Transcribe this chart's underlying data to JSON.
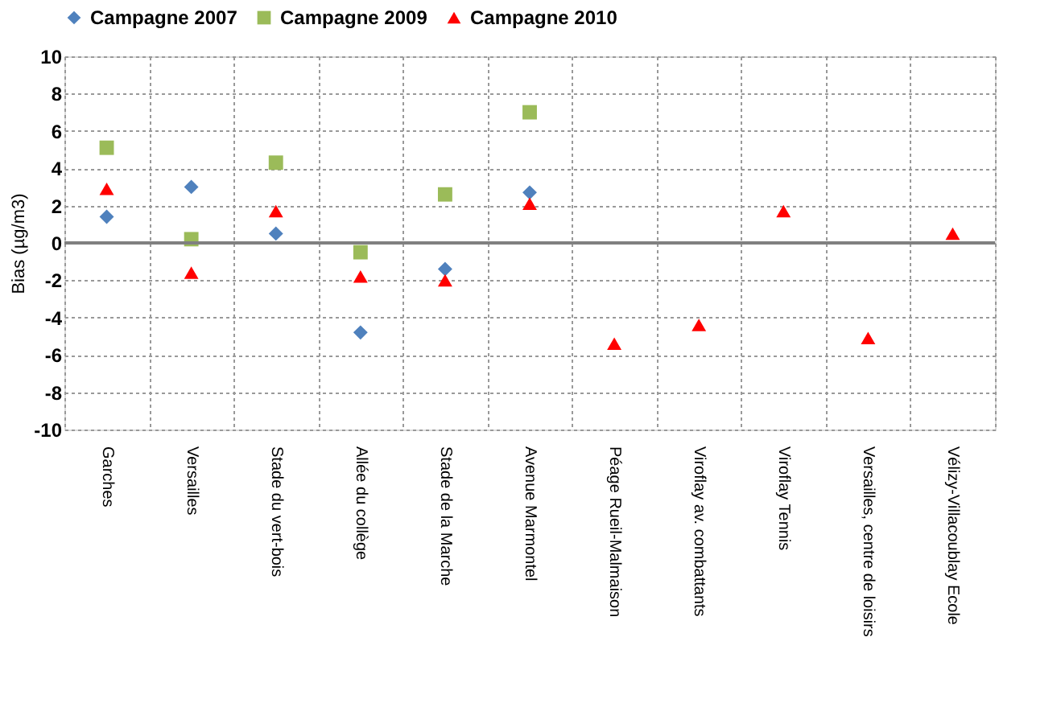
{
  "chart_data": {
    "type": "scatter",
    "ylabel": "Bias (µg/m3)",
    "categories": [
      "Garches",
      "Versailles",
      "Stade du vert-bois",
      "Allée du collège",
      "Stade de la Marche",
      "Avenue Marmontel",
      "Péage Rueil-Malmaison",
      "Viroflay av. combattants",
      "Viroflay Tennis",
      "Versailles, centre de loisirs",
      "Vélizy-Villacoublay Ecole"
    ],
    "series": [
      {
        "name": "Campagne 2007",
        "color": "#4f81bd",
        "marker": "diamond",
        "values": [
          1.4,
          3.0,
          0.5,
          -4.8,
          -1.4,
          2.7,
          null,
          null,
          null,
          null,
          null
        ]
      },
      {
        "name": "Campagne 2009",
        "color": "#9bbb59",
        "marker": "square",
        "values": [
          5.1,
          0.2,
          4.3,
          -0.5,
          2.6,
          7.0,
          null,
          null,
          null,
          null,
          null
        ]
      },
      {
        "name": "Campagne 2010",
        "color": "#ff0000",
        "marker": "triangle",
        "values": [
          2.9,
          -1.6,
          1.7,
          -1.8,
          -2.0,
          2.1,
          -5.4,
          -4.4,
          1.7,
          -5.1,
          0.5
        ]
      }
    ],
    "ylim": [
      -10,
      10
    ],
    "yticks": [
      -10,
      -8,
      -6,
      -4,
      -2,
      0,
      2,
      4,
      6,
      8,
      10
    ],
    "ref_lines": [
      {
        "axis": "y",
        "value": 0,
        "color": "#808080"
      }
    ],
    "grid": true,
    "legend": "top"
  }
}
